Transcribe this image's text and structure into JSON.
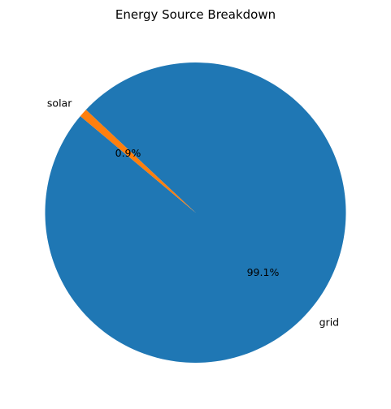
{
  "chart_data": {
    "type": "pie",
    "title": "Energy Source Breakdown",
    "categories": [
      "grid",
      "solar"
    ],
    "values": [
      99.1,
      0.9
    ],
    "percent_labels": [
      "99.1%",
      "0.9%"
    ],
    "colors": [
      "#1f77b4",
      "#ff7f0e"
    ],
    "legend": false
  }
}
